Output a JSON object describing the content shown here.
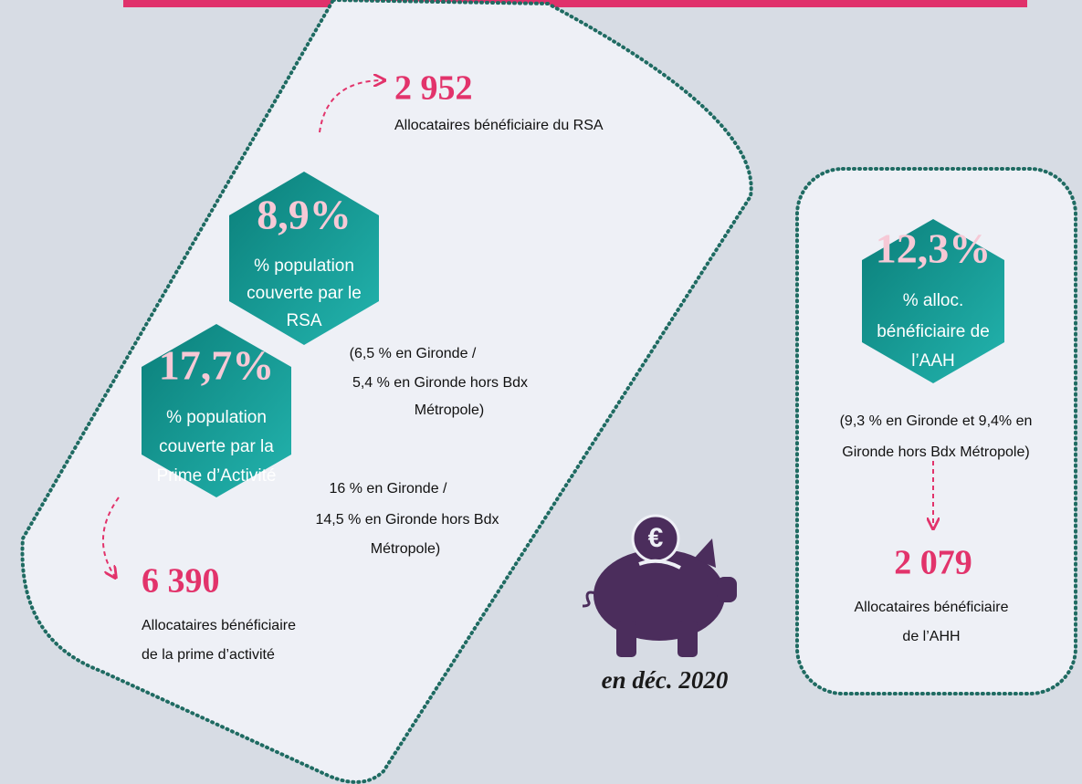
{
  "rsa": {
    "count": "2 952",
    "count_label": "Allocataires bénéficiaire du RSA",
    "rate": "8,9%",
    "rate_label": [
      "% population",
      "couverte par le",
      "RSA"
    ],
    "comparison": [
      "(6,5 % en Gironde /",
      "5,4 % en Gironde hors Bdx",
      "Métropole)"
    ]
  },
  "prime": {
    "count": "6 390",
    "count_label": [
      "Allocataires bénéficiaire",
      "de la prime d’activité"
    ],
    "rate": "17,7%",
    "rate_label": [
      "% population",
      "couverte par la",
      "Prime d’Activité"
    ],
    "comparison": [
      "16 % en Gironde /",
      "14,5 % en Gironde hors Bdx",
      "Métropole)"
    ]
  },
  "aah": {
    "rate": "12,3%",
    "rate_label": [
      "% alloc.",
      "bénéficiaire de",
      "l’AAH"
    ],
    "comparison": [
      "(9,3 % en Gironde et 9,4% en",
      "Gironde hors Bdx Métropole)"
    ],
    "count": "2 079",
    "count_label": [
      "Allocataires bénéficiaire",
      "de l’AHH"
    ]
  },
  "date": "en déc. 2020"
}
